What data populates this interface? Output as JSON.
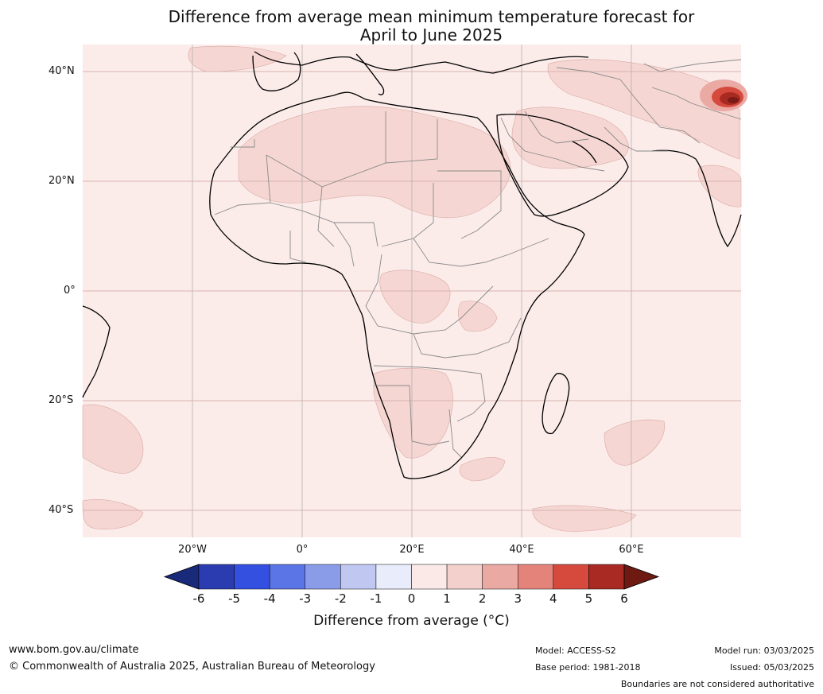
{
  "title_line1": "Difference from average mean minimum temperature forecast for",
  "title_line2": "April to June 2025",
  "lat_labels": [
    "40°N",
    "20°N",
    "0°",
    "20°S",
    "40°S"
  ],
  "lon_labels": [
    "20°W",
    "0°",
    "20°E",
    "40°E",
    "60°E"
  ],
  "colorbar": {
    "ticks": [
      "-6",
      "-5",
      "-4",
      "-3",
      "-2",
      "-1",
      "0",
      "1",
      "2",
      "3",
      "4",
      "5",
      "6"
    ],
    "colors": [
      "#1a2a7a",
      "#2a3cb0",
      "#3450e0",
      "#5c75e6",
      "#8a9be8",
      "#c0c8f2",
      "#e8ecfb",
      "#fbe9e7",
      "#f3d0cc",
      "#eaa9a3",
      "#e4837a",
      "#d64a3e",
      "#a82a22",
      "#6e1a12"
    ],
    "label": "Difference from average (°C)"
  },
  "footer": {
    "website": "www.bom.gov.au/climate",
    "copyright": "© Commonwealth of Australia 2025, Australian Bureau of Meteorology",
    "model": "Model: ACCESS-S2",
    "base_period": "Base period: 1981-2018",
    "model_run": "Model run: 03/03/2025",
    "issued": "Issued: 05/03/2025",
    "disclaimer": "Boundaries are not considered authoritative"
  },
  "map_colors": {
    "ocean_background": "#fbecea",
    "light_anomaly": "#f5d6d2",
    "hot_core": "#7a1c16"
  }
}
